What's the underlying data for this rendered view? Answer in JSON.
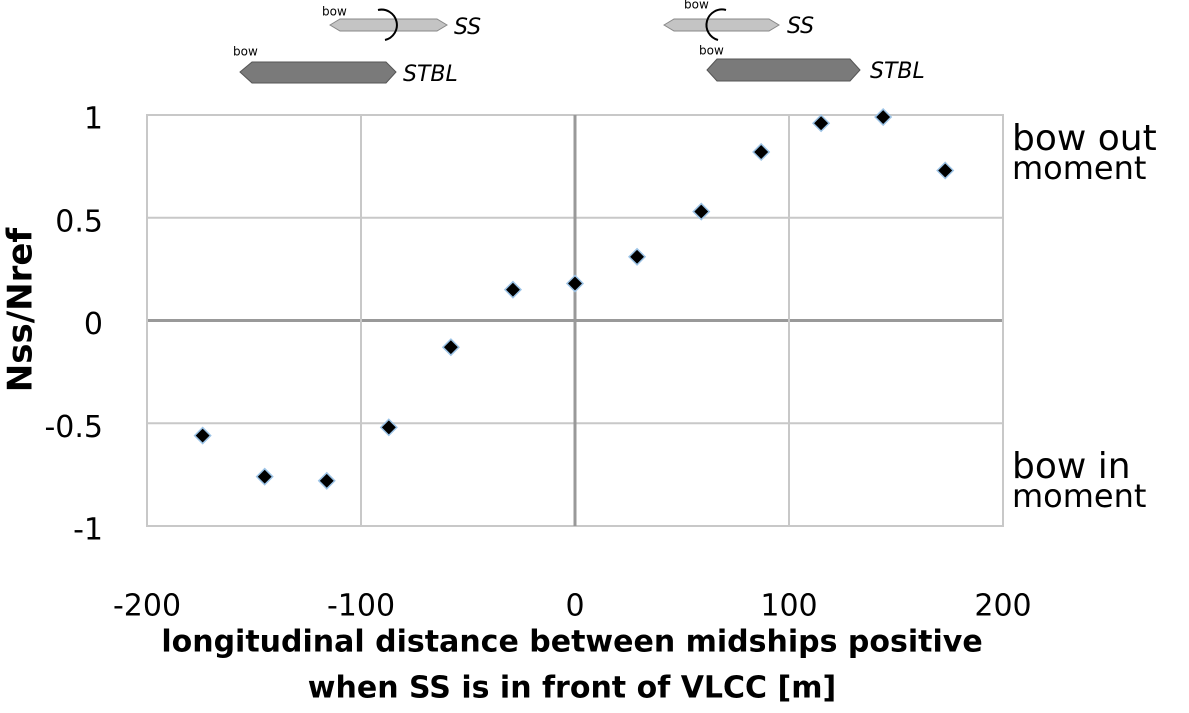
{
  "chart_data": {
    "type": "scatter",
    "y_label": "Nss/Nref",
    "x_label": [
      "longitudinal distance between midships positive",
      "when SS is in front of VLCC [m]"
    ],
    "annotations": [
      "bow out",
      "moment",
      "bow in",
      "moment"
    ],
    "diagram_labels": [
      "bow",
      "SS",
      "bow",
      "STBL",
      "bow",
      "SS",
      "bow",
      "STBL"
    ],
    "series": [
      {
        "color": "#000000",
        "x": [
          -174,
          -145,
          -116,
          -87,
          -58,
          -29,
          0,
          29,
          59,
          87,
          115,
          144,
          173
        ],
        "values": [
          -0.56,
          -0.76,
          -0.78,
          -0.52,
          -0.13,
          0.15,
          0.18,
          0.31,
          0.53,
          0.82,
          0.96,
          0.99,
          0.73
        ]
      }
    ],
    "xlim": [
      -200,
      200
    ],
    "ylim": [
      -1,
      1
    ],
    "xticks": [
      -200,
      -100,
      0,
      100,
      200
    ],
    "yticks": [
      -1,
      -0.5,
      0,
      0.5,
      1
    ],
    "grid": true
  }
}
